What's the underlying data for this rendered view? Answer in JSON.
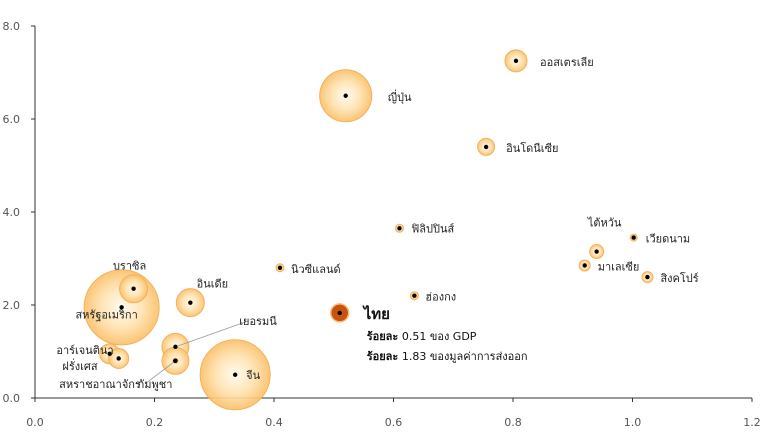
{
  "chart_data": {
    "type": "scatter",
    "xlim": [
      0,
      1.2
    ],
    "ylim": [
      0,
      8
    ],
    "x_ticks": [
      "0.0",
      "0.2",
      "0.4",
      "0.6",
      "0.8",
      "1.0",
      "1.2"
    ],
    "y_ticks": [
      "0.0",
      "2.0",
      "4.0",
      "6.0",
      "8.0"
    ],
    "grid": false,
    "points": [
      {
        "label": "ออสเตรเลีย",
        "x": 0.805,
        "y": 7.25,
        "size": 22
      },
      {
        "label": "ญี่ปุ่น",
        "x": 0.52,
        "y": 6.5,
        "size": 52
      },
      {
        "label": "อินโดนีเซีย",
        "x": 0.755,
        "y": 5.4,
        "size": 17
      },
      {
        "label": "ฟิลิปปินส์",
        "x": 0.61,
        "y": 3.65,
        "size": 8
      },
      {
        "label": "ไต้หวัน",
        "x": 0.94,
        "y": 3.15,
        "size": 14
      },
      {
        "label": "เวียดนาม",
        "x": 1.002,
        "y": 3.45,
        "size": 7
      },
      {
        "label": "มาเลเซีย",
        "x": 0.92,
        "y": 2.85,
        "size": 11
      },
      {
        "label": "สิงคโปร์",
        "x": 1.025,
        "y": 2.6,
        "size": 11
      },
      {
        "label": "นิวซีแลนด์",
        "x": 0.41,
        "y": 2.8,
        "size": 8
      },
      {
        "label": "ฮ่องกง",
        "x": 0.635,
        "y": 2.2,
        "size": 8
      },
      {
        "label": "บราซิล",
        "x": 0.165,
        "y": 2.35,
        "size": 28
      },
      {
        "label": "สหรัฐอเมริกา",
        "x": 0.145,
        "y": 1.95,
        "size": 75
      },
      {
        "label": "อินเดีย",
        "x": 0.26,
        "y": 2.05,
        "size": 28
      },
      {
        "label": "เยอรมนี",
        "x": 0.235,
        "y": 1.1,
        "size": 27
      },
      {
        "label": "อาร์เจนตินา",
        "x": 0.125,
        "y": 0.95,
        "size": 20
      },
      {
        "label": "ฝรั่งเศส",
        "x": 0.14,
        "y": 0.85,
        "size": 20
      },
      {
        "label": "สหราชอาณาจักร",
        "x": 0.235,
        "y": 0.8,
        "size": 27
      },
      {
        "label": "กัมพูชา",
        "x": 0.235,
        "y": 0.8,
        "size": 5
      },
      {
        "label": "จีน",
        "x": 0.335,
        "y": 0.5,
        "size": 70
      }
    ],
    "highlight": {
      "label": "ไทย",
      "x": 0.51,
      "y": 1.83,
      "size": 14,
      "annotation_lines": [
        {
          "strong": "ร้อยละ",
          "rest": " 0.51 ของ GDP"
        },
        {
          "strong": "ร้อยละ",
          "rest": " 1.83 ของมูลค่าการส่งออก"
        }
      ]
    },
    "colors": {
      "bubble_fill_center": "#fffaf0",
      "bubble_fill_edge": "#fbc069",
      "bubble_stroke": "#f2b25a",
      "highlight_fill": "#c8520f",
      "highlight_stroke": "#f5c07a",
      "dot": "#000000",
      "axis": "#333333"
    }
  }
}
